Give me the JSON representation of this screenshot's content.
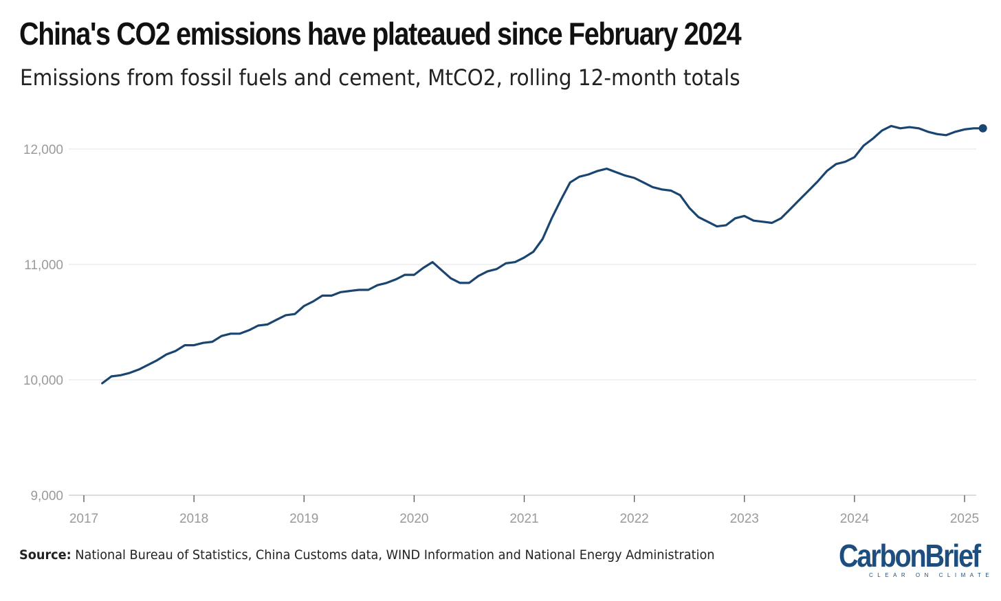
{
  "title": "China's CO2 emissions have plateaued since February 2024",
  "subtitle": "Emissions from fossil fuels and cement, MtCO2, rolling 12-month totals",
  "source_label": "Source:",
  "source_text": " National Bureau of Statistics, China Customs data, WIND Information and National Energy Administration",
  "logo": {
    "name": "CarbonBrief",
    "tagline": "CLEAR ON CLIMATE"
  },
  "colors": {
    "line": "#1a4570",
    "grid": "#e6e6e6",
    "tick": "#9a9a9a",
    "brand": "#1d4e7e"
  },
  "chart_data": {
    "type": "line",
    "title": "China's CO2 emissions have plateaued since February 2024",
    "xlabel": "",
    "ylabel": "",
    "xlim": [
      2017.0,
      2025.0
    ],
    "ylim": [
      9000,
      12000
    ],
    "grid": true,
    "legend": "none",
    "x_ticks": [
      2017,
      2018,
      2019,
      2020,
      2021,
      2022,
      2023,
      2024,
      2025
    ],
    "y_ticks": [
      9000,
      10000,
      11000,
      12000
    ],
    "y_tick_labels": [
      "9,000",
      "10,000",
      "11,000",
      "12,000"
    ],
    "series": [
      {
        "start": "2017-02",
        "frequency": "monthly",
        "end_marker": true,
        "values": [
          9970,
          10030,
          10040,
          10060,
          10090,
          10130,
          10170,
          10220,
          10250,
          10300,
          10300,
          10320,
          10330,
          10380,
          10400,
          10400,
          10430,
          10470,
          10480,
          10520,
          10560,
          10570,
          10640,
          10680,
          10730,
          10730,
          10760,
          10770,
          10780,
          10780,
          10820,
          10840,
          10870,
          10910,
          10910,
          10970,
          11020,
          10950,
          10880,
          10840,
          10840,
          10900,
          10940,
          10960,
          11010,
          11020,
          11060,
          11110,
          11220,
          11400,
          11560,
          11710,
          11760,
          11780,
          11810,
          11830,
          11800,
          11770,
          11750,
          11710,
          11670,
          11650,
          11640,
          11600,
          11490,
          11410,
          11370,
          11330,
          11340,
          11400,
          11420,
          11380,
          11370,
          11360,
          11400,
          11480,
          11560,
          11640,
          11720,
          11810,
          11870,
          11890,
          11930,
          12030,
          12090,
          12160,
          12200,
          12180,
          12190,
          12180,
          12150,
          12130,
          12120,
          12150,
          12170,
          12180,
          12180
        ]
      }
    ]
  }
}
